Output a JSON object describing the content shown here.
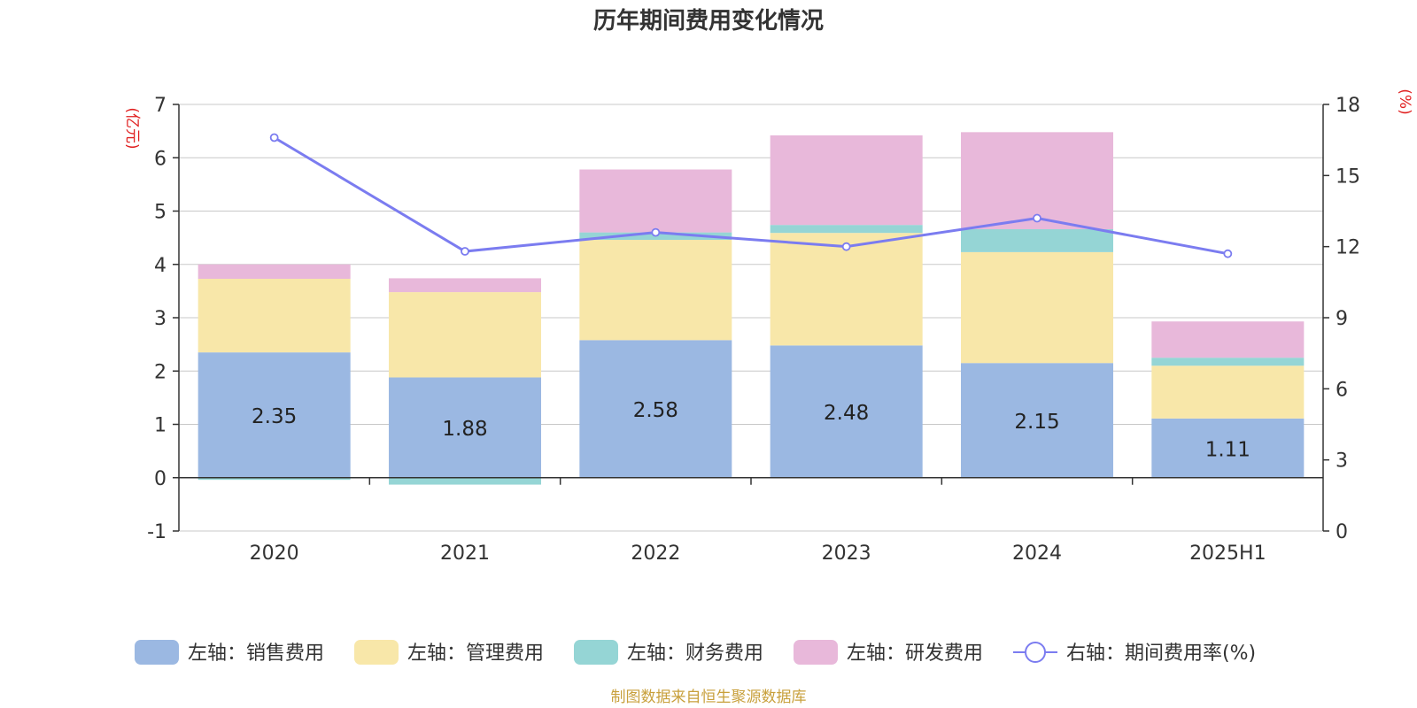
{
  "chart_data": {
    "type": "bar",
    "title": "历年期间费用变化情况",
    "categories": [
      "2020",
      "2021",
      "2022",
      "2023",
      "2024",
      "2025H1"
    ],
    "left_axis": {
      "label": "(亿元)",
      "ylim": [
        -1,
        7
      ],
      "ticks": [
        -1,
        0,
        1,
        2,
        3,
        4,
        5,
        6,
        7
      ]
    },
    "right_axis": {
      "label": "(%)",
      "ylim": [
        0,
        18
      ],
      "ticks": [
        0,
        3,
        6,
        9,
        12,
        15,
        18
      ]
    },
    "series": [
      {
        "name": "左轴：销售费用",
        "type": "bar",
        "axis": "left",
        "color": "#9bb8e2",
        "values": [
          2.35,
          1.88,
          2.58,
          2.48,
          2.15,
          1.11
        ],
        "labels": [
          "2.35",
          "1.88",
          "2.58",
          "2.48",
          "2.15",
          "1.11"
        ]
      },
      {
        "name": "左轴：管理费用",
        "type": "bar",
        "axis": "left",
        "color": "#f8e7a9",
        "values": [
          1.38,
          1.6,
          1.88,
          2.11,
          2.08,
          0.99
        ]
      },
      {
        "name": "左轴：财务费用",
        "type": "bar",
        "axis": "left",
        "color": "#95d5d5",
        "values": [
          -0.04,
          -0.13,
          0.14,
          0.15,
          0.43,
          0.15
        ]
      },
      {
        "name": "左轴：研发费用",
        "type": "bar",
        "axis": "left",
        "color": "#e8b8da",
        "values": [
          0.27,
          0.26,
          1.18,
          1.68,
          1.82,
          0.68
        ]
      },
      {
        "name": "右轴：期间费用率(%)",
        "type": "line",
        "axis": "right",
        "color": "#7b7cf0",
        "values": [
          16.6,
          11.8,
          12.6,
          12.0,
          13.2,
          11.7
        ]
      }
    ],
    "grid": true,
    "legend_position": "bottom"
  },
  "footer": {
    "source": "制图数据来自恒生聚源数据库",
    "source_color": "#c8a03c"
  },
  "colors": {
    "axis_label": "#e02020",
    "text": "#333333",
    "gridline": "#c8c8c8"
  }
}
